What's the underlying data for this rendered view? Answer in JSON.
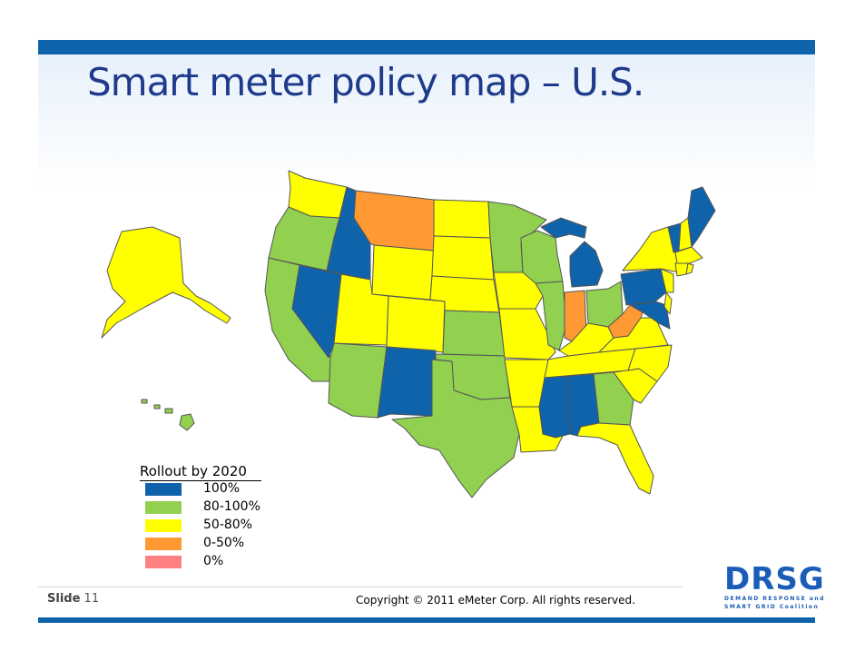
{
  "title": "Smart meter policy map – U.S.",
  "legend": {
    "title": "Rollout by 2020",
    "items": [
      {
        "label": "100%",
        "color": "#0f63ab"
      },
      {
        "label": "80-100%",
        "color": "#92d050"
      },
      {
        "label": "50-80%",
        "color": "#ffff00"
      },
      {
        "label": "0-50%",
        "color": "#ff9933"
      },
      {
        "label": "0%",
        "color": "#ff8080"
      }
    ]
  },
  "footer": {
    "slide_label": "Slide",
    "slide_number": "11",
    "copyright": "Copyright © 2011 eMeter Corp. All rights reserved."
  },
  "logo": {
    "word": "DRSG",
    "line1": "DEMAND RESPONSE and",
    "line2": "SMART GRID Coalition",
    "color": "#1a5db8",
    "accent": "#f28c28"
  },
  "map": {
    "categories": {
      "100%": [
        "ID",
        "NV",
        "NM",
        "MI",
        "PA",
        "MD",
        "ME",
        "VT",
        "MS",
        "AL"
      ],
      "80-100%": [
        "OR",
        "CA",
        "AZ",
        "TX",
        "OK",
        "KS",
        "MN",
        "WI",
        "IL",
        "OH",
        "GA",
        "HI"
      ],
      "50-80%": [
        "AK",
        "WA",
        "ND",
        "SD",
        "WY",
        "UT",
        "CO",
        "NE",
        "IA",
        "MO",
        "AR",
        "LA",
        "KY",
        "TN",
        "NC",
        "SC",
        "VA",
        "FL",
        "NY",
        "NH",
        "MA",
        "CT",
        "RI",
        "NJ",
        "DE"
      ],
      "0-50%": [
        "MT",
        "IN",
        "WV"
      ],
      "0%": []
    }
  }
}
